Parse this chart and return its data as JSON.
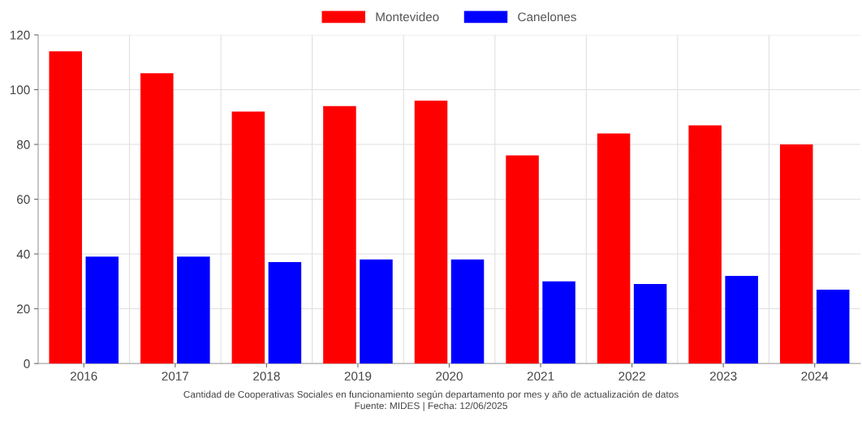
{
  "chart_data": {
    "type": "bar",
    "categories": [
      "2016",
      "2017",
      "2018",
      "2019",
      "2020",
      "2021",
      "2022",
      "2023",
      "2024"
    ],
    "series": [
      {
        "name": "Montevideo",
        "color": "#ff0000",
        "values": [
          114,
          106,
          92,
          94,
          96,
          76,
          84,
          87,
          80
        ]
      },
      {
        "name": "Canelones",
        "color": "#0000ff",
        "values": [
          39,
          39,
          37,
          38,
          38,
          30,
          29,
          32,
          27
        ]
      }
    ],
    "ylim": [
      0,
      120
    ],
    "yticks": [
      0,
      20,
      40,
      60,
      80,
      100,
      120
    ],
    "grid": true,
    "legend": "top",
    "annotations": [
      "Cantidad de Cooperativas Sociales en funcionamiento según departamento por mes y año de actualización de datos",
      "Fuente: MIDES | Fecha: 12/06/2025"
    ]
  }
}
